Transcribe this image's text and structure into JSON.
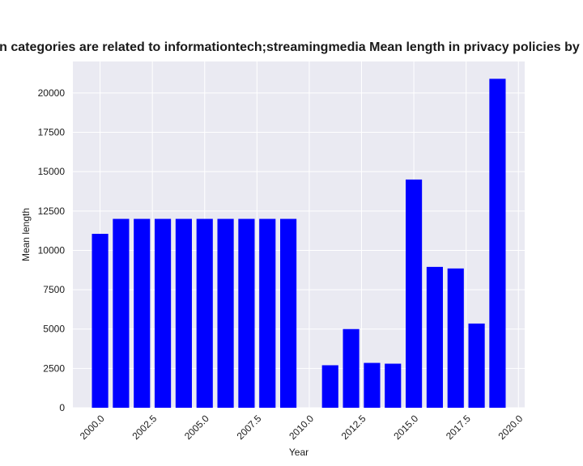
{
  "chart_data": {
    "type": "bar",
    "title": "ten categories are related to informationtech;streamingmedia Mean length in privacy policies by year",
    "xlabel": "Year",
    "ylabel": "Mean length",
    "x": [
      2000,
      2001,
      2002,
      2003,
      2004,
      2005,
      2006,
      2007,
      2008,
      2009,
      2011,
      2012,
      2013,
      2014,
      2015,
      2016,
      2017,
      2018,
      2019
    ],
    "values": [
      11050,
      12000,
      12000,
      12000,
      12000,
      12000,
      12000,
      12000,
      12000,
      12000,
      2700,
      5000,
      2850,
      2800,
      14500,
      8950,
      8850,
      5350,
      20900
    ],
    "xlim": [
      1998.7,
      2020.3
    ],
    "ylim": [
      0,
      22000
    ],
    "x_ticks": [
      "2000.0",
      "2002.5",
      "2005.0",
      "2007.5",
      "2010.0",
      "2012.5",
      "2015.0",
      "2017.5",
      "2020.0"
    ],
    "y_ticks": [
      "0",
      "2500",
      "5000",
      "7500",
      "10000",
      "12500",
      "15000",
      "17500",
      "20000"
    ],
    "grid": true,
    "bar_color": "#0000ff",
    "background_color": "#eaeaf2"
  }
}
